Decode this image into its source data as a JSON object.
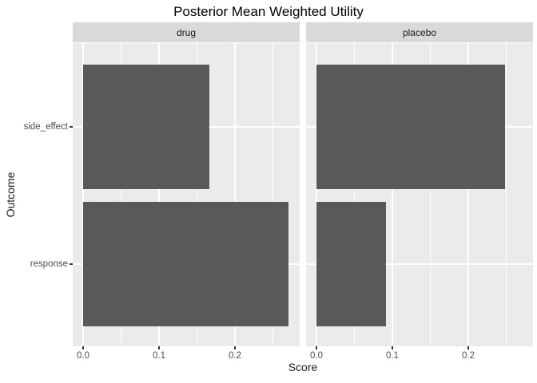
{
  "chart_data": {
    "type": "bar",
    "orientation": "horizontal",
    "title": "Posterior Mean Weighted Utility",
    "xlabel": "Score",
    "ylabel": "Outcome",
    "categories": [
      "side_effect",
      "response"
    ],
    "facets": [
      {
        "label": "drug",
        "values": [
          0.166,
          0.271
        ]
      },
      {
        "label": "placebo",
        "values": [
          0.248,
          0.092
        ]
      }
    ],
    "x_ticks": [
      {
        "value": 0.0,
        "label": "0.0"
      },
      {
        "value": 0.1,
        "label": "0.1"
      },
      {
        "value": 0.2,
        "label": "0.2"
      }
    ],
    "x_minor_ticks": [
      0.05,
      0.15,
      0.25
    ],
    "xlim": [
      -0.014,
      0.285
    ],
    "legend": "none",
    "grid": "major-and-minor-white",
    "colors": {
      "bar": "#595959",
      "panel_bg": "#EBEBEB",
      "strip_bg": "#D9D9D9",
      "grid": "#FFFFFF",
      "axis_text": "#4D4D4D",
      "tick_mark": "#333333",
      "title_text": "#000000",
      "background": "#FFFFFF"
    }
  }
}
